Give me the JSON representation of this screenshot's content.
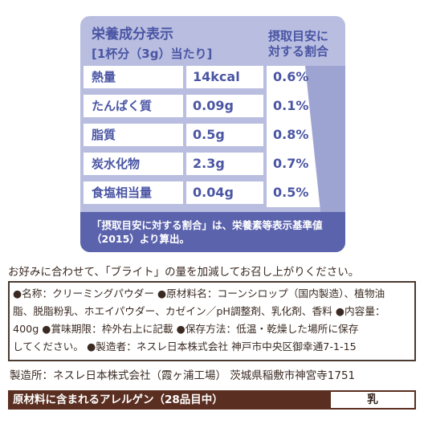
{
  "nutrition": {
    "title": "栄養成分表示",
    "serving": "[1杯分（3g）当たり]",
    "ratio_header_line1": "摂取目安に",
    "ratio_header_line2": "対する割合",
    "rows": [
      {
        "name": "熱量",
        "value": "14kcal",
        "percent": "0.6%"
      },
      {
        "name": "たんぱく質",
        "value": "0.09g",
        "percent": "0.1%"
      },
      {
        "name": "脂質",
        "value": "0.5g",
        "percent": "0.8%"
      },
      {
        "name": "炭水化物",
        "value": "2.3g",
        "percent": "0.7%"
      },
      {
        "name": "食塩相当量",
        "value": "0.04g",
        "percent": "0.5%"
      }
    ],
    "note_line1": "「摂取目安に対する割合」は、栄養素等表示基準値",
    "note_line2": "（2015）より算出。"
  },
  "intro": "お好みに合わせて、「ブライト」の量を加減してお召し上がりください。",
  "details": {
    "line1": "●名称：クリーミングパウダー ●原材料名：コーンシロップ（国内製造）、植物油",
    "line2": "脂、脱脂粉乳、ホエイパウダー、カゼイン／pH調整剤、乳化剤、香料 ●内容量：",
    "line3": "400g ●賞味期限：枠外右上に記載 ●保存方法：低温・乾燥した場所に保存",
    "line4": "してください。 ●製造者：ネスレ日本株式会社 神戸市中央区御幸通7-1-15"
  },
  "manufacturer": "製造所：ネスレ日本株式会社（霞ヶ浦工場） 茨城県稲敷市神宮寺1751",
  "allergen": {
    "label": "原材料に含まれるアレルゲン（28品目中）",
    "value": "乳"
  },
  "colors": {
    "panel_bg": "#b9bee0",
    "panel_text": "#4a55a4",
    "panel_band": "#5b63ad",
    "allergen_bar": "#5a2e20"
  }
}
